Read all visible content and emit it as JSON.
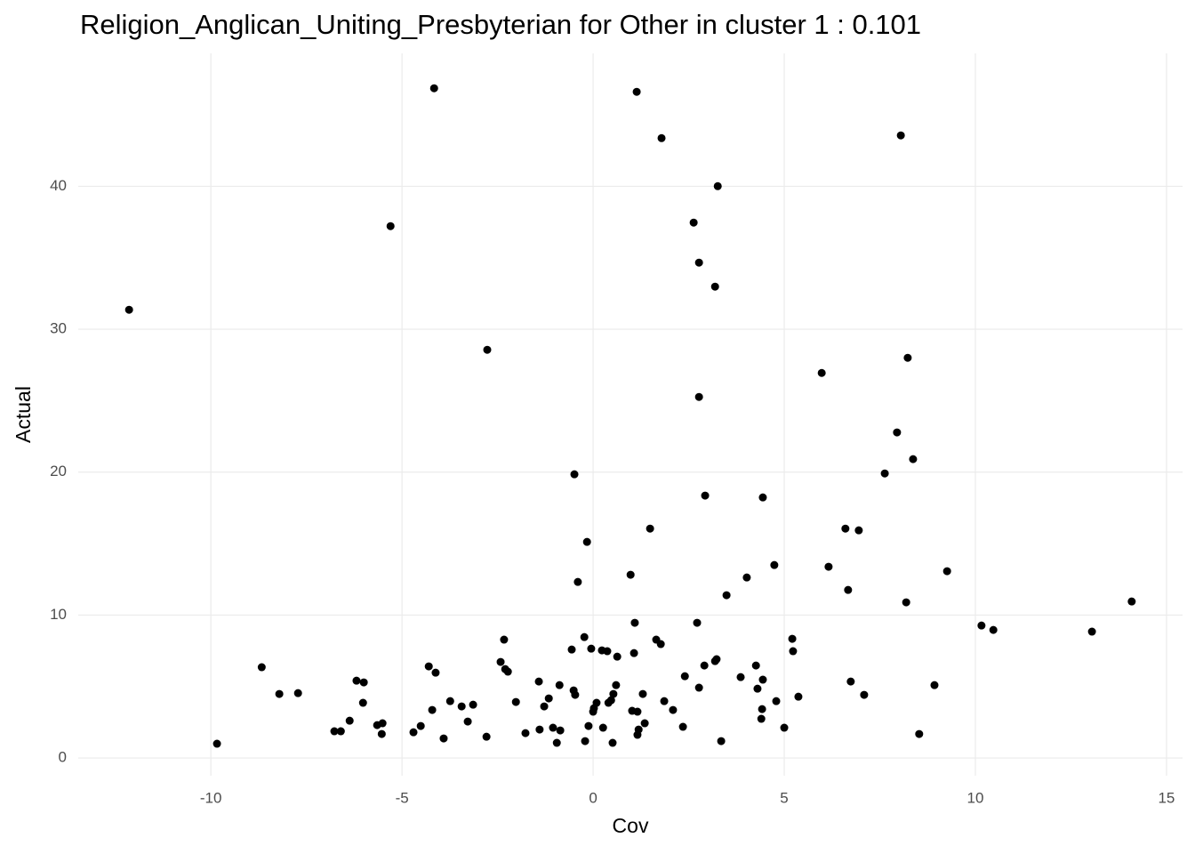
{
  "chart_data": {
    "type": "scatter",
    "title": "Religion_Anglican_Uniting_Presbyterian for Other in cluster 1 : 0.101",
    "x_label": "Cov",
    "y_label": "Actual",
    "color": "#000000",
    "grid": true,
    "xlim": [
      -13.47,
      15.42
    ],
    "ylim": [
      -1.24,
      49.3
    ],
    "xticks": [
      -10,
      -5,
      0,
      5,
      10,
      15
    ],
    "yticks": [
      0,
      10,
      20,
      30,
      40
    ],
    "series": [
      {
        "name": "Actual",
        "x": [
          -12.14,
          -9.84,
          -8.67,
          -8.21,
          -7.72,
          -6.77,
          -6.6,
          -6.37,
          -6.19,
          -6.02,
          -6.0,
          -5.65,
          -5.51,
          -5.53,
          -5.3,
          -4.7,
          -4.51,
          -4.3,
          -4.21,
          -4.12,
          -4.16,
          -3.91,
          -3.74,
          -3.44,
          -3.28,
          -3.14,
          -2.79,
          -2.77,
          -2.42,
          -2.33,
          -2.3,
          -2.23,
          -2.02,
          -1.77,
          -1.42,
          -1.4,
          -1.28,
          -1.16,
          -1.05,
          -0.95,
          -0.88,
          -0.86,
          -0.56,
          -0.51,
          -0.49,
          -0.47,
          -0.4,
          -0.23,
          -0.21,
          -0.16,
          -0.12,
          -0.05,
          0.0,
          0.02,
          0.09,
          0.23,
          0.26,
          0.37,
          0.4,
          0.47,
          0.51,
          0.53,
          0.6,
          0.63,
          0.98,
          1.02,
          1.07,
          1.09,
          1.14,
          1.16,
          1.16,
          1.19,
          1.3,
          1.35,
          1.49,
          1.65,
          1.77,
          1.79,
          1.86,
          2.09,
          2.35,
          2.4,
          2.63,
          2.72,
          2.77,
          2.77,
          2.77,
          2.91,
          2.93,
          3.19,
          3.19,
          3.23,
          3.26,
          3.35,
          3.49,
          3.86,
          4.02,
          4.26,
          4.3,
          4.4,
          4.42,
          4.44,
          4.44,
          4.74,
          4.79,
          5.0,
          5.21,
          5.23,
          5.37,
          5.98,
          6.16,
          6.6,
          6.67,
          6.74,
          6.95,
          7.09,
          7.63,
          7.95,
          8.05,
          8.19,
          8.23,
          8.37,
          8.53,
          8.93,
          9.26,
          10.16,
          10.47,
          13.05,
          14.09
        ],
        "values": [
          31.36,
          1.0,
          6.35,
          4.48,
          4.54,
          1.87,
          1.87,
          2.61,
          5.41,
          3.86,
          5.29,
          2.3,
          2.43,
          1.68,
          37.21,
          1.8,
          2.24,
          6.41,
          3.36,
          5.97,
          46.86,
          1.37,
          3.98,
          3.61,
          2.55,
          3.73,
          1.49,
          28.56,
          6.72,
          8.28,
          6.22,
          6.04,
          3.92,
          1.74,
          5.35,
          1.99,
          3.61,
          4.17,
          2.12,
          1.06,
          5.1,
          1.93,
          7.59,
          4.73,
          19.85,
          4.42,
          12.32,
          8.46,
          1.18,
          15.12,
          2.24,
          7.65,
          3.24,
          3.48,
          3.86,
          7.53,
          2.12,
          7.47,
          3.86,
          4.04,
          1.06,
          4.48,
          5.1,
          7.09,
          12.82,
          3.3,
          7.34,
          9.46,
          46.61,
          3.24,
          1.62,
          1.99,
          4.48,
          2.43,
          16.05,
          8.28,
          7.97,
          43.37,
          3.98,
          3.36,
          2.18,
          5.72,
          37.46,
          9.46,
          4.92,
          34.66,
          25.26,
          6.47,
          18.36,
          6.78,
          32.98,
          6.91,
          40.01,
          1.18,
          11.39,
          5.66,
          12.63,
          6.47,
          4.85,
          2.74,
          3.42,
          18.23,
          5.48,
          13.5,
          3.98,
          2.12,
          8.34,
          7.47,
          4.29,
          26.94,
          13.38,
          16.05,
          11.76,
          5.35,
          15.93,
          4.42,
          19.91,
          22.78,
          43.56,
          10.89,
          28.0,
          20.91,
          1.68,
          5.1,
          13.07,
          9.27,
          8.96,
          8.84,
          10.95
        ]
      }
    ]
  }
}
